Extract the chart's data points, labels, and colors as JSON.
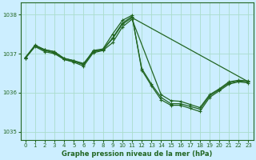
{
  "title": "Graphe pression niveau de la mer (hPa)",
  "bg_color": "#cceeff",
  "grid_color": "#aaddcc",
  "line_color": "#226622",
  "ylim": [
    1034.8,
    1038.3
  ],
  "yticks": [
    1035,
    1036,
    1037,
    1038
  ],
  "xlim": [
    -0.5,
    23.5
  ],
  "xticks": [
    0,
    1,
    2,
    3,
    4,
    5,
    6,
    7,
    8,
    9,
    10,
    11,
    12,
    13,
    14,
    15,
    16,
    17,
    18,
    19,
    20,
    21,
    22,
    23
  ],
  "lines": [
    {
      "x": [
        0,
        1,
        2,
        3,
        4,
        5,
        6,
        7,
        8,
        9,
        10,
        11,
        12,
        13,
        14,
        15,
        16,
        17,
        18,
        19,
        20,
        21,
        22,
        23
      ],
      "y": [
        1036.9,
        1037.2,
        1037.1,
        1037.05,
        1036.85,
        1036.8,
        1036.72,
        1037.05,
        1037.1,
        1037.4,
        1037.78,
        1037.95,
        1036.62,
        1036.22,
        1035.88,
        1035.72,
        1035.72,
        1035.65,
        1035.58,
        1035.92,
        1036.08,
        1036.25,
        1036.3,
        1036.28
      ]
    },
    {
      "x": [
        0,
        1,
        2,
        3,
        4,
        5,
        6,
        7,
        8,
        9,
        10,
        11,
        12,
        13,
        14,
        15,
        16,
        17,
        18,
        19,
        20,
        21,
        22,
        23
      ],
      "y": [
        1036.9,
        1037.22,
        1037.1,
        1037.05,
        1036.88,
        1036.82,
        1036.72,
        1037.08,
        1037.12,
        1037.5,
        1037.85,
        1037.98,
        1036.58,
        1036.18,
        1035.82,
        1035.68,
        1035.68,
        1035.6,
        1035.52,
        1035.88,
        1036.05,
        1036.22,
        1036.28,
        1036.25
      ]
    },
    {
      "x": [
        0,
        1,
        2,
        3,
        4,
        5,
        6,
        7,
        8,
        9,
        10,
        11,
        23
      ],
      "y": [
        1036.88,
        1037.2,
        1037.08,
        1037.02,
        1036.88,
        1036.82,
        1036.75,
        1037.05,
        1037.1,
        1037.38,
        1037.75,
        1037.92,
        1036.28
      ]
    },
    {
      "x": [
        0,
        1,
        2,
        3,
        4,
        5,
        6,
        7,
        8,
        9,
        10,
        11,
        14,
        15,
        16,
        17,
        18,
        19,
        20,
        21,
        22,
        23
      ],
      "y": [
        1036.88,
        1037.18,
        1037.05,
        1037.0,
        1036.85,
        1036.78,
        1036.68,
        1037.02,
        1037.08,
        1037.28,
        1037.68,
        1037.88,
        1035.95,
        1035.8,
        1035.78,
        1035.7,
        1035.62,
        1035.95,
        1036.1,
        1036.28,
        1036.32,
        1036.3
      ]
    }
  ]
}
